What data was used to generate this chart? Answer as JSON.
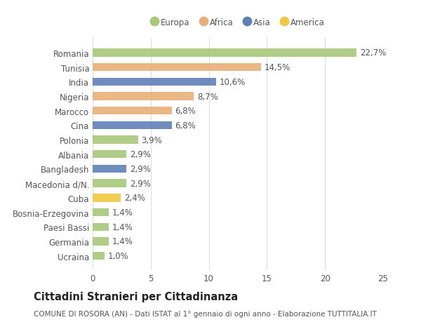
{
  "categories": [
    "Romania",
    "Tunisia",
    "India",
    "Nigeria",
    "Marocco",
    "Cina",
    "Polonia",
    "Albania",
    "Bangladesh",
    "Macedonia d/N.",
    "Cuba",
    "Bosnia-Erzegovina",
    "Paesi Bassi",
    "Germania",
    "Ucraina"
  ],
  "values": [
    22.7,
    14.5,
    10.6,
    8.7,
    6.8,
    6.8,
    3.9,
    2.9,
    2.9,
    2.9,
    2.4,
    1.4,
    1.4,
    1.4,
    1.0
  ],
  "labels": [
    "22,7%",
    "14,5%",
    "10,6%",
    "8,7%",
    "6,8%",
    "6,8%",
    "3,9%",
    "2,9%",
    "2,9%",
    "2,9%",
    "2,4%",
    "1,4%",
    "1,4%",
    "1,4%",
    "1,0%"
  ],
  "colors": [
    "#a8c87a",
    "#e8b078",
    "#6080b8",
    "#e8b078",
    "#e8b078",
    "#6080b8",
    "#a8c87a",
    "#a8c87a",
    "#6080b8",
    "#a8c87a",
    "#f0c840",
    "#a8c87a",
    "#a8c87a",
    "#a8c87a",
    "#a8c87a"
  ],
  "legend_labels": [
    "Europa",
    "Africa",
    "Asia",
    "America"
  ],
  "legend_colors": [
    "#a8c87a",
    "#e8b078",
    "#6080b8",
    "#f0c840"
  ],
  "xlim": [
    0,
    25
  ],
  "xticks": [
    0,
    5,
    10,
    15,
    20,
    25
  ],
  "title": "Cittadini Stranieri per Cittadinanza",
  "subtitle": "COMUNE DI ROSORA (AN) - Dati ISTAT al 1° gennaio di ogni anno - Elaborazione TUTTITALIA.IT",
  "background_color": "#ffffff",
  "bar_height": 0.55,
  "grid_color": "#dddddd",
  "text_color": "#555555",
  "label_fontsize": 8.5,
  "tick_fontsize": 8.5,
  "title_fontsize": 10.5,
  "subtitle_fontsize": 7.5
}
